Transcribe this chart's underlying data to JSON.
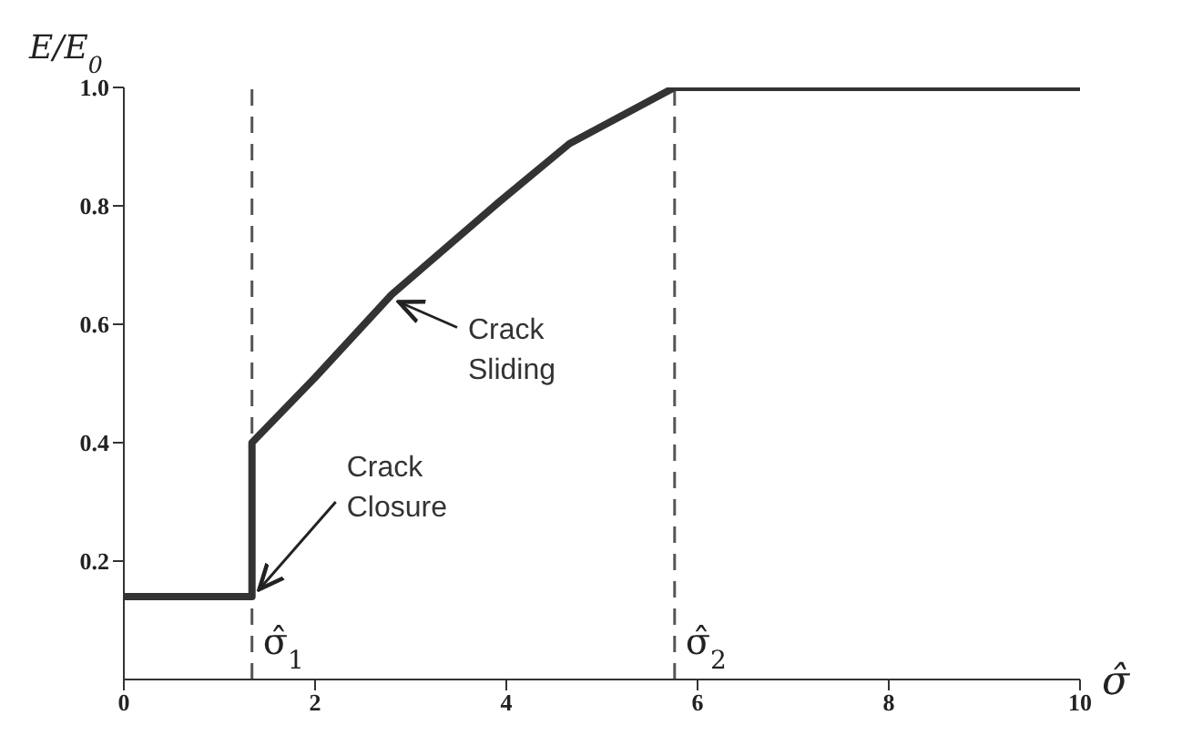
{
  "chart_data": {
    "type": "line",
    "xlabel": "σ̂",
    "ylabel": "E/E$_{0}$",
    "series": [
      {
        "color": "#333333",
        "x": [
          0,
          1.34,
          1.34,
          2,
          2.8,
          3.92,
          4.66,
          5.76,
          10
        ],
        "values": [
          0.14,
          0.14,
          0.4,
          0.51,
          0.65,
          0.806,
          0.905,
          1.0,
          1.0
        ]
      }
    ],
    "xlim": [
      0,
      10
    ],
    "xticks": [
      0,
      2,
      4,
      6,
      8,
      10
    ],
    "ylim": [
      0,
      1.0
    ],
    "yticks": [
      0.2,
      0.4,
      0.6,
      0.8,
      {
        "value": 1.0,
        "label": "1.0"
      }
    ],
    "ref_lines": [
      {
        "axis": "x",
        "value": 1.34,
        "label": "σ̂$_{1}$",
        "line_style": "dashed",
        "color": "#555555"
      },
      {
        "axis": "x",
        "value": 5.76,
        "label": "σ̂$_{2}$",
        "line_style": "dashed",
        "color": "#555555"
      }
    ],
    "annotations": [
      {
        "text": "Crack Sliding",
        "x": 2.8,
        "y": 0.65
      },
      {
        "text": "Crack Closure",
        "x": 1.34,
        "y": 0.14
      }
    ],
    "grid": false,
    "legend": false,
    "marker": "none",
    "line_style": "solid"
  }
}
